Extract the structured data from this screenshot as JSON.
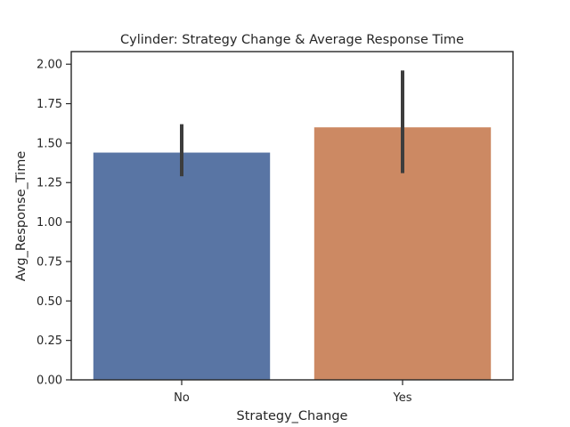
{
  "chart_data": {
    "type": "bar",
    "title": "Cylinder: Strategy Change & Average Response Time",
    "xlabel": "Strategy_Change",
    "ylabel": "Avg_Response_Time",
    "categories": [
      "No",
      "Yes"
    ],
    "values": [
      1.44,
      1.6
    ],
    "error_bars": [
      [
        1.29,
        1.62
      ],
      [
        1.31,
        1.96
      ]
    ],
    "colors": [
      "#5975a4",
      "#cc8963"
    ],
    "error_color": "#3d3d3d",
    "ylim": [
      0,
      2.08
    ],
    "yticks": [
      "0.00",
      "0.25",
      "0.50",
      "0.75",
      "1.00",
      "1.25",
      "1.50",
      "1.75",
      "2.00"
    ],
    "grid": false,
    "legend": "none"
  }
}
